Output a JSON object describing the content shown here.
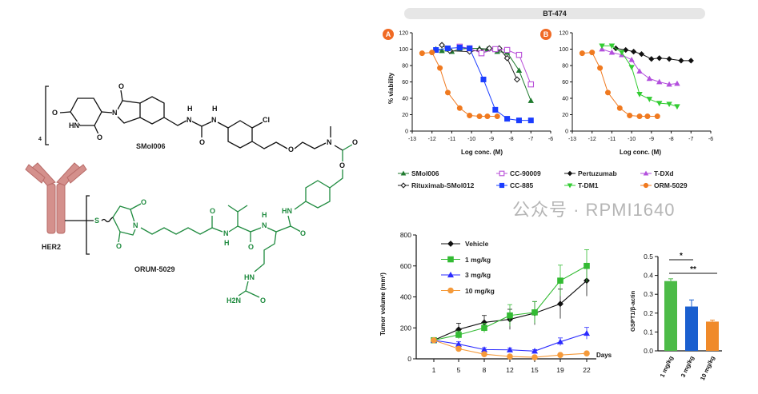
{
  "structure": {
    "payload_name": "SMol006",
    "adc_name": "ORUM-5029",
    "antibody_label": "HER2",
    "dar": "4",
    "atoms_black": [
      "O",
      "O",
      "N",
      "HN",
      "O",
      "H",
      "N",
      "H",
      "N",
      "O",
      "Cl",
      "O",
      "N",
      "O",
      "O"
    ],
    "atoms_green": [
      "HN",
      "O",
      "H",
      "N",
      "O",
      "O",
      "N",
      "H",
      "O",
      "N",
      "O",
      "S",
      "HN",
      "H2N",
      "O"
    ]
  },
  "figure": {
    "banner": "BT-474",
    "panel_a": "A",
    "panel_b": "B"
  },
  "legend_viability": [
    {
      "label": "SMol006",
      "color": "#1f7a2e",
      "marker": "triangle"
    },
    {
      "label": "Rituximab-SMol012",
      "color": "#222222",
      "marker": "diamond-open"
    },
    {
      "label": "CC-90009",
      "color": "#b84fd8",
      "marker": "square-open"
    },
    {
      "label": "CC-885",
      "color": "#1a3cff",
      "marker": "square"
    },
    {
      "label": "Pertuzumab",
      "color": "#111111",
      "marker": "diamond"
    },
    {
      "label": "T-DM1",
      "color": "#33cc33",
      "marker": "triangle-down"
    },
    {
      "label": "T-DXd",
      "color": "#b34fdd",
      "marker": "triangle"
    },
    {
      "label": "ORM-5029",
      "color": "#f07a20",
      "marker": "circle"
    }
  ],
  "watermark": "公众号 · RPMI1640",
  "chart_data": [
    {
      "id": "A",
      "type": "line",
      "title": "BT-474",
      "xlabel": "Log conc. (M)",
      "ylabel": "% viability",
      "xlim": [
        -13,
        -6
      ],
      "ylim": [
        0,
        120
      ],
      "xticks": [
        -13,
        -12,
        -11,
        -10,
        -9,
        -8,
        -7,
        -6
      ],
      "yticks": [
        0,
        20,
        40,
        60,
        80,
        100,
        120
      ],
      "series": [
        {
          "name": "SMol006",
          "color": "#1f7a2e",
          "marker": "triangle",
          "x": [
            -11.8,
            -11.5,
            -11,
            -10.6,
            -10.1,
            -9.6,
            -9.2,
            -8.7,
            -8.2,
            -7.6,
            -7.0
          ],
          "y": [
            100,
            98,
            97,
            100,
            101,
            101,
            100,
            97,
            96,
            74,
            37
          ]
        },
        {
          "name": "Rituximab-SMol012",
          "color": "#222222",
          "marker": "diamond-open",
          "x": [
            -11.5,
            -11.1,
            -10.1,
            -9.6,
            -9.1,
            -8.6,
            -8.2,
            -7.7
          ],
          "y": [
            105,
            98,
            97,
            99,
            101,
            101,
            89,
            63
          ]
        },
        {
          "name": "CC-90009",
          "color": "#b84fd8",
          "marker": "square-open",
          "x": [
            -10.6,
            -10.1,
            -9.5,
            -8.8,
            -8.2,
            -7.6,
            -7.0
          ],
          "y": [
            103,
            101,
            95,
            100,
            99,
            93,
            57
          ]
        },
        {
          "name": "CC-885",
          "color": "#1a3cff",
          "marker": "square",
          "x": [
            -11.8,
            -11.2,
            -10.6,
            -10.1,
            -9.4,
            -8.8,
            -8.2,
            -7.6,
            -7.0
          ],
          "y": [
            99,
            101,
            102,
            101,
            63,
            26,
            15,
            13,
            13
          ]
        },
        {
          "name": "ORM-5029",
          "color": "#f07a20",
          "marker": "circle",
          "x": [
            -12.5,
            -12.0,
            -11.6,
            -11.2,
            -10.6,
            -10.1,
            -9.6,
            -9.2,
            -8.7
          ],
          "y": [
            95,
            96,
            77,
            47,
            28,
            19,
            18,
            18,
            18
          ]
        }
      ]
    },
    {
      "id": "B",
      "type": "line",
      "title": "BT-474",
      "xlabel": "Log conc. (M)",
      "ylabel": "% viability",
      "xlim": [
        -13,
        -6
      ],
      "ylim": [
        0,
        120
      ],
      "xticks": [
        -13,
        -12,
        -11,
        -10,
        -9,
        -8,
        -7,
        -6
      ],
      "yticks": [
        0,
        20,
        40,
        60,
        80,
        100,
        120
      ],
      "series": [
        {
          "name": "Pertuzumab",
          "color": "#111111",
          "marker": "diamond",
          "x": [
            -10.8,
            -10.3,
            -9.9,
            -9.5,
            -9.0,
            -8.6,
            -8.1,
            -7.5,
            -7.0
          ],
          "y": [
            101,
            99,
            97,
            94,
            88,
            89,
            88,
            86,
            86
          ]
        },
        {
          "name": "T-DXd",
          "color": "#b34fdd",
          "marker": "triangle",
          "x": [
            -11.5,
            -11.0,
            -10.5,
            -10.0,
            -9.6,
            -9.1,
            -8.6,
            -8.1,
            -7.7
          ],
          "y": [
            100,
            96,
            93,
            87,
            73,
            64,
            60,
            57,
            58
          ]
        },
        {
          "name": "T-DM1",
          "color": "#33cc33",
          "marker": "triangle-down",
          "x": [
            -11.5,
            -11.0,
            -10.5,
            -10.0,
            -9.6,
            -9.1,
            -8.6,
            -8.1,
            -7.7
          ],
          "y": [
            104,
            104,
            96,
            78,
            45,
            39,
            34,
            33,
            30
          ]
        },
        {
          "name": "ORM-5029",
          "color": "#f07a20",
          "marker": "circle",
          "x": [
            -12.5,
            -12.0,
            -11.6,
            -11.2,
            -10.6,
            -10.1,
            -9.6,
            -9.2,
            -8.7
          ],
          "y": [
            95,
            96,
            77,
            47,
            28,
            19,
            18,
            18,
            18
          ]
        }
      ]
    },
    {
      "id": "tumor",
      "type": "line",
      "xlabel": "Days",
      "ylabel": "Tumor volume (mm³)",
      "categories": [
        "1",
        "5",
        "8",
        "12",
        "15",
        "19",
        "22"
      ],
      "ylim": [
        0,
        800
      ],
      "yticks": [
        0,
        200,
        400,
        600,
        800
      ],
      "legend": "top-left",
      "series": [
        {
          "name": "Vehicle",
          "color": "#111111",
          "marker": "diamond",
          "values": [
            120,
            190,
            235,
            255,
            295,
            355,
            505
          ],
          "err": [
            0,
            40,
            45,
            65,
            75,
            95,
            100
          ]
        },
        {
          "name": "1 mg/kg",
          "color": "#33bb33",
          "marker": "square",
          "values": [
            120,
            155,
            200,
            280,
            300,
            505,
            600
          ],
          "err": [
            0,
            25,
            30,
            70,
            70,
            100,
            105
          ]
        },
        {
          "name": "3 mg/kg",
          "color": "#2b2bff",
          "marker": "triangle",
          "values": [
            120,
            95,
            60,
            58,
            50,
            110,
            165
          ],
          "err": [
            0,
            15,
            12,
            12,
            10,
            25,
            38
          ]
        },
        {
          "name": "10 mg/kg",
          "color": "#f59a3a",
          "marker": "circle",
          "values": [
            120,
            65,
            30,
            15,
            10,
            25,
            35
          ],
          "err": [
            0,
            8,
            6,
            5,
            4,
            6,
            8
          ]
        }
      ]
    },
    {
      "id": "gspt1",
      "type": "bar",
      "ylabel": "GSPT1/β-actin",
      "categories": [
        "1 mg/kg",
        "3 mg/kg",
        "10 mg/kg"
      ],
      "values": [
        0.37,
        0.235,
        0.155
      ],
      "err": [
        0.012,
        0.035,
        0.008
      ],
      "colors": [
        "#4cbb47",
        "#1a5fcf",
        "#f08a2a"
      ],
      "ylim": [
        0,
        0.5
      ],
      "yticks": [
        "0.0",
        "0.1",
        "0.2",
        "0.3",
        "0.4",
        "0.5"
      ],
      "significance": [
        {
          "from": "1 mg/kg",
          "to": "3 mg/kg",
          "label": "*"
        },
        {
          "from": "1 mg/kg",
          "to": "10 mg/kg",
          "label": "**"
        }
      ]
    }
  ]
}
